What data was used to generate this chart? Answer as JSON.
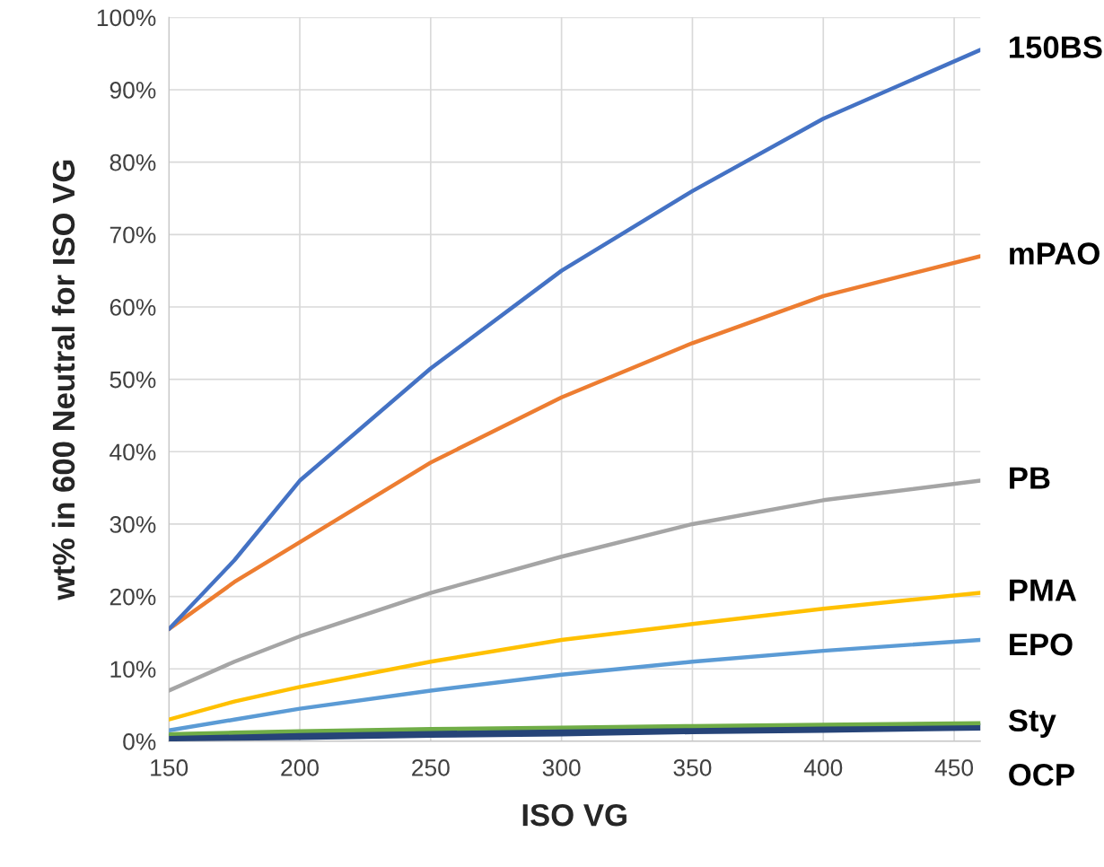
{
  "chart_data": {
    "type": "line",
    "xlabel": "ISO VG",
    "ylabel": "wt% in 600 Neutral for ISO VG",
    "xlim": [
      150,
      460
    ],
    "xticks": [
      150,
      200,
      250,
      300,
      350,
      400,
      450
    ],
    "ylim": [
      0,
      100
    ],
    "yticks": [
      {
        "value": 0,
        "label": "0%"
      },
      {
        "value": 10,
        "label": "10%"
      },
      {
        "value": 20,
        "label": "20%"
      },
      {
        "value": 30,
        "label": "30%"
      },
      {
        "value": 40,
        "label": "40%"
      },
      {
        "value": 50,
        "label": "50%"
      },
      {
        "value": 60,
        "label": "60%"
      },
      {
        "value": 70,
        "label": "70%"
      },
      {
        "value": 80,
        "label": "80%"
      },
      {
        "value": 90,
        "label": "90%"
      },
      {
        "value": 100,
        "label": "100%"
      }
    ],
    "grid": true,
    "legend": false,
    "marker": "none",
    "line_style": "solid",
    "x": [
      150,
      175,
      200,
      250,
      300,
      350,
      400,
      460
    ],
    "series": [
      {
        "name": "150BS",
        "color": "#4472c4",
        "values": [
          15.5,
          25,
          36,
          51.5,
          65,
          76,
          86,
          95.5
        ]
      },
      {
        "name": "mPAO",
        "color": "#ed7d31",
        "values": [
          15.5,
          22,
          27.5,
          38.5,
          47.5,
          55,
          61.5,
          67
        ]
      },
      {
        "name": "PB",
        "color": "#a5a5a5",
        "values": [
          7,
          11,
          14.5,
          20.5,
          25.5,
          30,
          33.3,
          36
        ]
      },
      {
        "name": "PMA",
        "color": "#ffc000",
        "values": [
          3,
          5.5,
          7.5,
          11,
          14,
          16.2,
          18.3,
          20.5
        ]
      },
      {
        "name": "EPO",
        "color": "#5b9bd5",
        "values": [
          1.5,
          3,
          4.5,
          7,
          9.2,
          11,
          12.5,
          14
        ]
      },
      {
        "name": "Sty",
        "color": "#70ad47",
        "values": [
          1,
          1.2,
          1.4,
          1.7,
          1.9,
          2.1,
          2.3,
          2.5
        ]
      },
      {
        "name": "OCP",
        "color": "#264478",
        "values": [
          0.5,
          0.6,
          0.7,
          1,
          1.2,
          1.5,
          1.7,
          2
        ]
      }
    ]
  }
}
